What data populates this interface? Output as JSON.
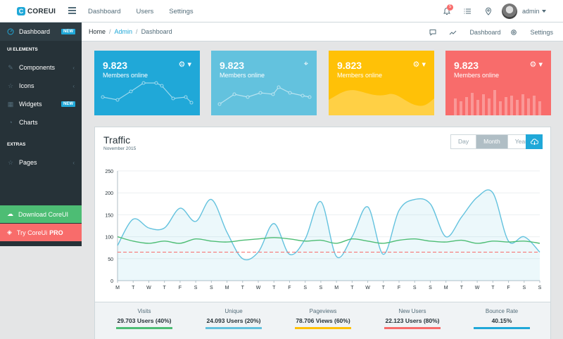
{
  "brand": {
    "logo": "C",
    "name": "COREUI"
  },
  "topnav": [
    "Dashboard",
    "Users",
    "Settings"
  ],
  "header": {
    "notif_count": "5",
    "user": "admin"
  },
  "sidebar": {
    "dashboard": {
      "label": "Dashboard",
      "badge": "NEW"
    },
    "section_ui": "UI ELEMENTS",
    "components": "Components",
    "icons": "Icons",
    "widgets": {
      "label": "Widgets",
      "badge": "NEW"
    },
    "charts": "Charts",
    "section_extras": "EXTRAS",
    "pages": "Pages",
    "download": "Download CoreUI",
    "try_pro_prefix": "Try CoreUi",
    "try_pro_bold": "PRO"
  },
  "breadcrumb": {
    "home": "Home",
    "admin": "Admin",
    "current": "Dashboard",
    "link_dashboard": "Dashboard",
    "link_settings": "Settings"
  },
  "cards": [
    {
      "value": "9.823",
      "label": "Members online",
      "color": "#20a8d8"
    },
    {
      "value": "9.823",
      "label": "Members online",
      "color": "#63c2de"
    },
    {
      "value": "9.823",
      "label": "Members online",
      "color": "#ffc107"
    },
    {
      "value": "9.823",
      "label": "Members online",
      "color": "#f86c6b"
    }
  ],
  "traffic": {
    "title": "Traffic",
    "subtitle": "November 2015",
    "buttons": [
      "Day",
      "Month",
      "Year"
    ],
    "active_button": "Month"
  },
  "chart_data": {
    "type": "line",
    "title": "Traffic",
    "categories": [
      "M",
      "T",
      "W",
      "T",
      "F",
      "S",
      "S",
      "M",
      "T",
      "W",
      "T",
      "F",
      "S",
      "S",
      "M",
      "T",
      "W",
      "T",
      "F",
      "S",
      "S",
      "M",
      "T",
      "W",
      "T",
      "F",
      "S",
      "S"
    ],
    "ylim": [
      0,
      250
    ],
    "yticks": [
      0,
      50,
      100,
      150,
      200,
      250
    ],
    "grid": true,
    "series": [
      {
        "color": "#63c2de",
        "fill": true,
        "values": [
          80,
          140,
          120,
          120,
          165,
          135,
          185,
          110,
          50,
          65,
          130,
          60,
          95,
          180,
          55,
          100,
          168,
          60,
          160,
          185,
          175,
          100,
          145,
          190,
          200,
          90,
          100,
          65
        ]
      },
      {
        "color": "#4dbd74",
        "values": [
          100,
          90,
          85,
          90,
          85,
          95,
          90,
          88,
          92,
          95,
          98,
          95,
          90,
          92,
          85,
          95,
          90,
          85,
          92,
          95,
          90,
          88,
          92,
          85,
          90,
          88,
          90,
          85
        ]
      },
      {
        "color": "#f86c6b",
        "dashed": true,
        "values": [
          65,
          65,
          65,
          65,
          65,
          65,
          65,
          65,
          65,
          65,
          65,
          65,
          65,
          65,
          65,
          65,
          65,
          65,
          65,
          65,
          65,
          65,
          65,
          65,
          65,
          65,
          65,
          65
        ]
      }
    ]
  },
  "footer_stats": [
    {
      "label": "Visits",
      "value": "29.703 Users (40%)",
      "color": "#4dbd74"
    },
    {
      "label": "Unique",
      "value": "24.093 Users (20%)",
      "color": "#63c2de"
    },
    {
      "label": "Pageviews",
      "value": "78.706 Views (60%)",
      "color": "#ffc107"
    },
    {
      "label": "New Users",
      "value": "22.123 Users (80%)",
      "color": "#f86c6b"
    },
    {
      "label": "Bounce Rate",
      "value": "40.15%",
      "color": "#20a8d8"
    }
  ]
}
